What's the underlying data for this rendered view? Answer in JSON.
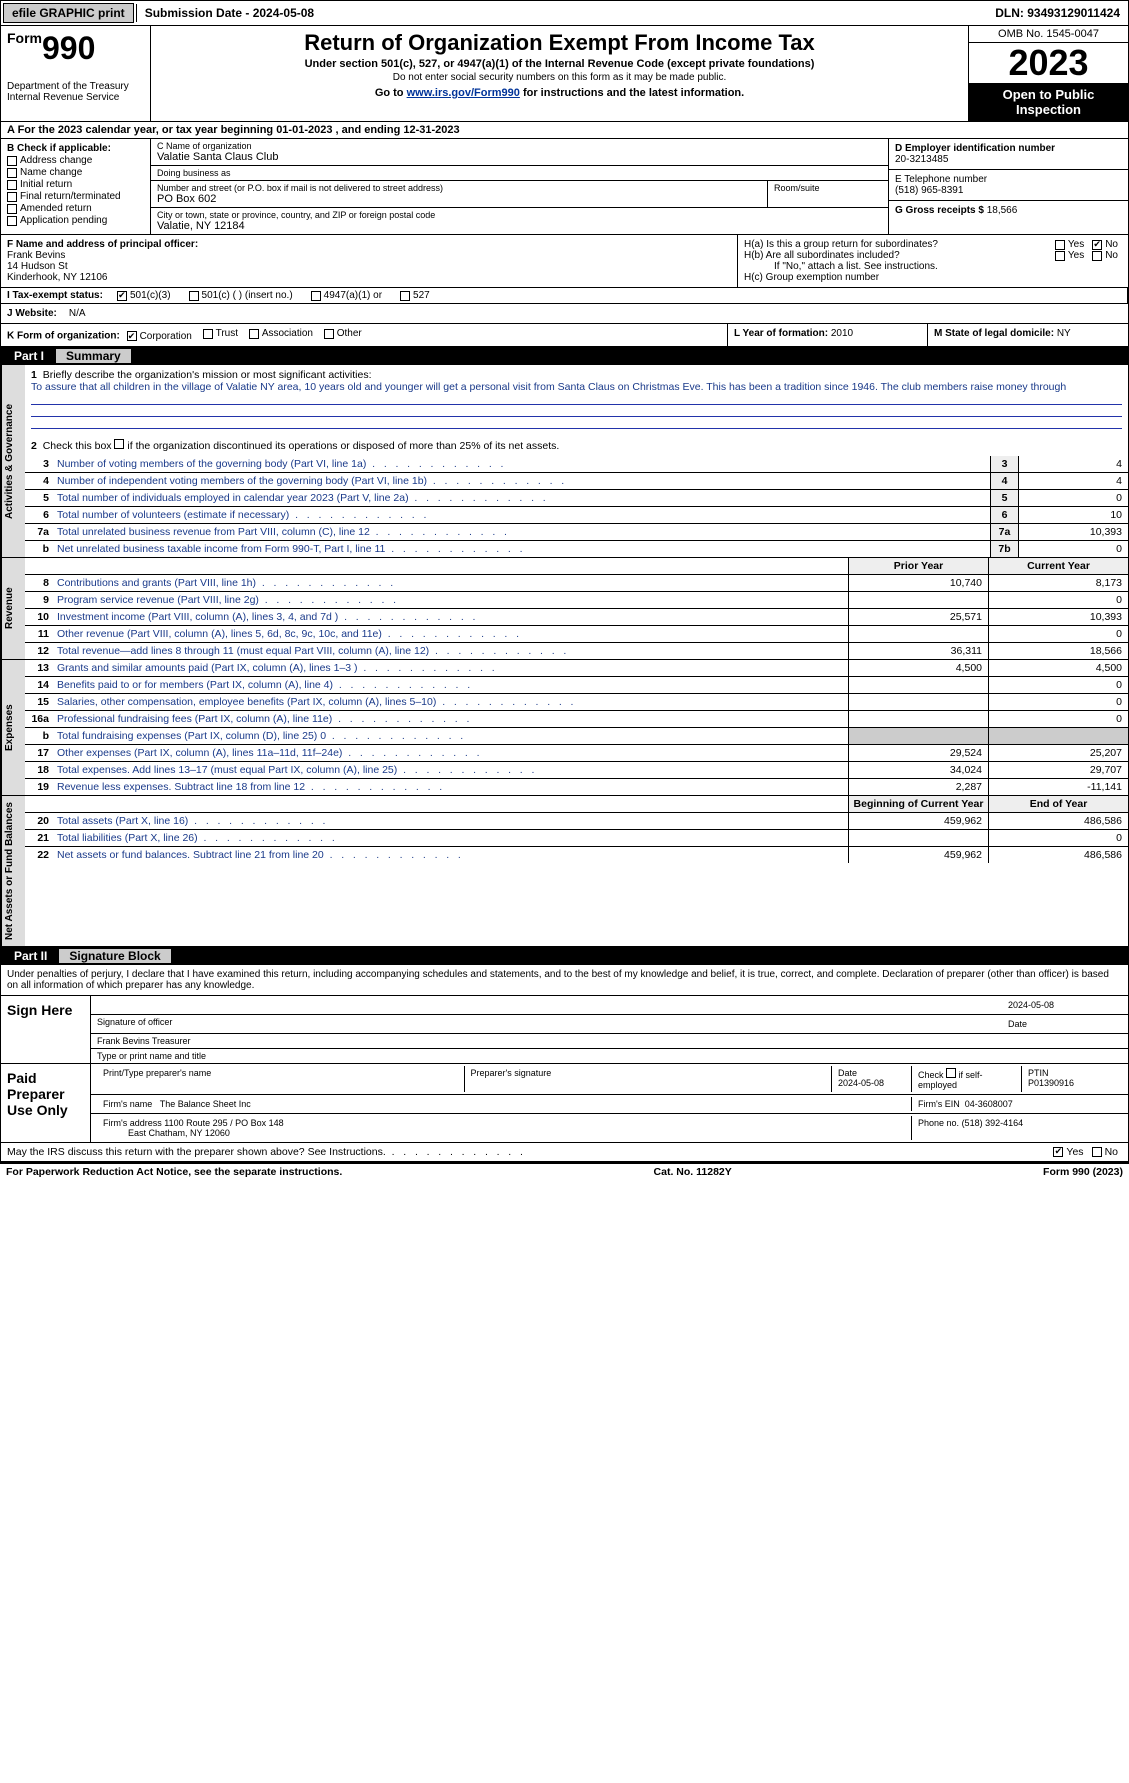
{
  "topbar": {
    "efile": "efile GRAPHIC print",
    "submission": "Submission Date - 2024-05-08",
    "dln": "DLN: 93493129011424"
  },
  "header": {
    "form_word": "Form",
    "form_num": "990",
    "title": "Return of Organization Exempt From Income Tax",
    "subtitle": "Under section 501(c), 527, or 4947(a)(1) of the Internal Revenue Code (except private foundations)",
    "note": "Do not enter social security numbers on this form as it may be made public.",
    "goto_pre": "Go to ",
    "goto_link": "www.irs.gov/Form990",
    "goto_post": " for instructions and the latest information.",
    "dept": "Department of the Treasury\nInternal Revenue Service",
    "omb": "OMB No. 1545-0047",
    "year": "2023",
    "inspect": "Open to Public Inspection"
  },
  "rowA": "A For the 2023 calendar year, or tax year beginning 01-01-2023    , and ending 12-31-2023",
  "boxB": {
    "label": "B Check if applicable:",
    "opts": [
      "Address change",
      "Name change",
      "Initial return",
      "Final return/terminated",
      "Amended return",
      "Application pending"
    ]
  },
  "boxC": {
    "name_lbl": "C Name of organization",
    "name": "Valatie Santa Claus Club",
    "dba_lbl": "Doing business as",
    "addr_lbl": "Number and street (or P.O. box if mail is not delivered to street address)",
    "addr": "PO Box 602",
    "room_lbl": "Room/suite",
    "city_lbl": "City or town, state or province, country, and ZIP or foreign postal code",
    "city": "Valatie, NY  12184"
  },
  "boxD": {
    "lbl": "D Employer identification number",
    "val": "20-3213485"
  },
  "boxE": {
    "lbl": "E Telephone number",
    "val": "(518) 965-8391"
  },
  "boxG": {
    "lbl": "G Gross receipts $",
    "val": "18,566"
  },
  "boxF": {
    "lbl": "F  Name and address of principal officer:",
    "name": "Frank Bevins",
    "addr1": "14 Hudson St",
    "addr2": "Kinderhook, NY  12106"
  },
  "boxH": {
    "a": "H(a)  Is this a group return for subordinates?",
    "b": "H(b)  Are all subordinates included?",
    "b_note": "If \"No,\" attach a list. See instructions.",
    "c": "H(c)  Group exemption number"
  },
  "taxI": {
    "lbl": "I   Tax-exempt status:",
    "c3": "501(c)(3)",
    "c": "501(c) (  ) (insert no.)",
    "a1": "4947(a)(1) or",
    "s527": "527"
  },
  "rowJ": {
    "lbl": "J   Website:",
    "val": "N/A"
  },
  "rowK": {
    "lbl": "K Form of organization:",
    "corp": "Corporation",
    "trust": "Trust",
    "assoc": "Association",
    "other": "Other"
  },
  "rowL": {
    "lbl": "L Year of formation:",
    "val": "2010"
  },
  "rowM": {
    "lbl": "M State of legal domicile:",
    "val": "NY"
  },
  "part1": {
    "num": "Part I",
    "title": "Summary"
  },
  "activities": {
    "tab": "Activities & Governance",
    "l1_lbl": "Briefly describe the organization's mission or most significant activities:",
    "l1_text": "To assure that all children in the village of Valatie NY area, 10 years old and younger will get a personal visit from Santa Claus on Christmas Eve. This has been a tradition since 1946. The club members raise money through",
    "l2": "Check this box   if the organization discontinued its operations or disposed of more than 25% of its net assets.",
    "rows": [
      {
        "n": "3",
        "t": "Number of voting members of the governing body (Part VI, line 1a)",
        "box": "3",
        "v": "4"
      },
      {
        "n": "4",
        "t": "Number of independent voting members of the governing body (Part VI, line 1b)",
        "box": "4",
        "v": "4"
      },
      {
        "n": "5",
        "t": "Total number of individuals employed in calendar year 2023 (Part V, line 2a)",
        "box": "5",
        "v": "0"
      },
      {
        "n": "6",
        "t": "Total number of volunteers (estimate if necessary)",
        "box": "6",
        "v": "10"
      },
      {
        "n": "7a",
        "t": "Total unrelated business revenue from Part VIII, column (C), line 12",
        "box": "7a",
        "v": "10,393"
      },
      {
        "n": "b",
        "t": "Net unrelated business taxable income from Form 990-T, Part I, line 11",
        "box": "7b",
        "v": "0"
      }
    ]
  },
  "revenue": {
    "tab": "Revenue",
    "hdr_prior": "Prior Year",
    "hdr_curr": "Current Year",
    "rows": [
      {
        "n": "8",
        "t": "Contributions and grants (Part VIII, line 1h)",
        "p": "10,740",
        "c": "8,173"
      },
      {
        "n": "9",
        "t": "Program service revenue (Part VIII, line 2g)",
        "p": "",
        "c": "0"
      },
      {
        "n": "10",
        "t": "Investment income (Part VIII, column (A), lines 3, 4, and 7d )",
        "p": "25,571",
        "c": "10,393"
      },
      {
        "n": "11",
        "t": "Other revenue (Part VIII, column (A), lines 5, 6d, 8c, 9c, 10c, and 11e)",
        "p": "",
        "c": "0"
      },
      {
        "n": "12",
        "t": "Total revenue—add lines 8 through 11 (must equal Part VIII, column (A), line 12)",
        "p": "36,311",
        "c": "18,566"
      }
    ]
  },
  "expenses": {
    "tab": "Expenses",
    "rows": [
      {
        "n": "13",
        "t": "Grants and similar amounts paid (Part IX, column (A), lines 1–3 )",
        "p": "4,500",
        "c": "4,500"
      },
      {
        "n": "14",
        "t": "Benefits paid to or for members (Part IX, column (A), line 4)",
        "p": "",
        "c": "0"
      },
      {
        "n": "15",
        "t": "Salaries, other compensation, employee benefits (Part IX, column (A), lines 5–10)",
        "p": "",
        "c": "0"
      },
      {
        "n": "16a",
        "t": "Professional fundraising fees (Part IX, column (A), line 11e)",
        "p": "",
        "c": "0"
      },
      {
        "n": "b",
        "t": "Total fundraising expenses (Part IX, column (D), line 25) 0",
        "p": "grey",
        "c": "grey"
      },
      {
        "n": "17",
        "t": "Other expenses (Part IX, column (A), lines 11a–11d, 11f–24e)",
        "p": "29,524",
        "c": "25,207"
      },
      {
        "n": "18",
        "t": "Total expenses. Add lines 13–17 (must equal Part IX, column (A), line 25)",
        "p": "34,024",
        "c": "29,707"
      },
      {
        "n": "19",
        "t": "Revenue less expenses. Subtract line 18 from line 12",
        "p": "2,287",
        "c": "-11,141"
      }
    ]
  },
  "netassets": {
    "tab": "Net Assets or Fund Balances",
    "hdr_beg": "Beginning of Current Year",
    "hdr_end": "End of Year",
    "rows": [
      {
        "n": "20",
        "t": "Total assets (Part X, line 16)",
        "p": "459,962",
        "c": "486,586"
      },
      {
        "n": "21",
        "t": "Total liabilities (Part X, line 26)",
        "p": "",
        "c": "0"
      },
      {
        "n": "22",
        "t": "Net assets or fund balances. Subtract line 21 from line 20",
        "p": "459,962",
        "c": "486,586"
      }
    ]
  },
  "part2": {
    "num": "Part II",
    "title": "Signature Block"
  },
  "perjury": "Under penalties of perjury, I declare that I have examined this return, including accompanying schedules and statements, and to the best of my knowledge and belief, it is true, correct, and complete. Declaration of preparer (other than officer) is based on all information of which preparer has any knowledge.",
  "sign": {
    "label": "Sign Here",
    "date": "2024-05-08",
    "sig_lbl": "Signature of officer",
    "name": "Frank Bevins  Treasurer",
    "type_lbl": "Type or print name and title",
    "date_lbl": "Date"
  },
  "preparer": {
    "label": "Paid Preparer Use Only",
    "print_lbl": "Print/Type preparer's name",
    "sig_lbl": "Preparer's signature",
    "date_lbl": "Date",
    "date": "2024-05-08",
    "chk_lbl": "Check    if self-employed",
    "ptin_lbl": "PTIN",
    "ptin": "P01390916",
    "firm_name_lbl": "Firm's name",
    "firm_name": "The Balance Sheet Inc",
    "firm_ein_lbl": "Firm's EIN",
    "firm_ein": "04-3608007",
    "firm_addr_lbl": "Firm's address",
    "firm_addr": "1100 Route 295 / PO Box 148",
    "firm_city": "East Chatham, NY  12060",
    "phone_lbl": "Phone no.",
    "phone": "(518) 392-4164"
  },
  "may": "May the IRS discuss this return with the preparer shown above? See Instructions.",
  "footer": {
    "pra": "For Paperwork Reduction Act Notice, see the separate instructions.",
    "cat": "Cat. No. 11282Y",
    "form": "Form 990 (2023)"
  },
  "yes": "Yes",
  "no": "No"
}
